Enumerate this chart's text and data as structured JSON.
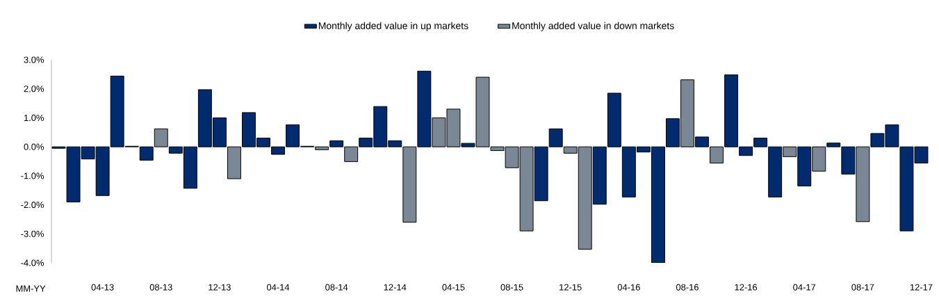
{
  "chart_data": {
    "type": "bar",
    "xlabel": "MM-YY",
    "categories": [
      null,
      null,
      null,
      "04-13",
      null,
      null,
      null,
      "08-13",
      null,
      null,
      null,
      "12-13",
      null,
      null,
      null,
      "04-14",
      null,
      null,
      null,
      "08-14",
      null,
      null,
      null,
      "12-14",
      null,
      null,
      null,
      "04-15",
      null,
      null,
      null,
      "08-15",
      null,
      null,
      null,
      "12-15",
      null,
      null,
      null,
      "04-16",
      null,
      null,
      null,
      "08-16",
      null,
      null,
      null,
      "12-16",
      null,
      null,
      null,
      "04-17",
      null,
      null,
      null,
      "08-17",
      null,
      null,
      null,
      "12-17"
    ],
    "series": [
      {
        "name": "Monthly added value in up markets",
        "color": "#002b6f",
        "values": [
          -0.05,
          -1.9,
          -0.42,
          -1.68,
          2.44,
          0.02,
          -0.46,
          null,
          -0.22,
          -1.43,
          1.97,
          1.0,
          null,
          1.18,
          0.3,
          -0.26,
          0.76,
          0.02,
          null,
          0.21,
          null,
          0.3,
          1.39,
          0.21,
          null,
          2.61,
          null,
          null,
          0.12,
          null,
          null,
          null,
          null,
          -1.86,
          0.62,
          null,
          null,
          -1.98,
          1.85,
          -1.73,
          -0.18,
          -4.0,
          0.97,
          null,
          0.34,
          null,
          2.48,
          -0.3,
          0.3,
          -1.73,
          null,
          -1.35,
          null,
          0.13,
          -0.94,
          null,
          0.46,
          0.76,
          -2.9,
          -0.56
        ]
      },
      {
        "name": "Monthly added value in down markets",
        "color": "#7a8794",
        "values": [
          null,
          null,
          null,
          null,
          null,
          null,
          null,
          0.62,
          null,
          null,
          null,
          null,
          -1.1,
          null,
          null,
          null,
          null,
          null,
          -0.1,
          null,
          -0.51,
          null,
          null,
          null,
          -2.6,
          null,
          1.0,
          1.3,
          null,
          2.4,
          -0.13,
          -0.72,
          -2.9,
          null,
          null,
          -0.22,
          -3.53,
          null,
          null,
          null,
          null,
          null,
          null,
          2.31,
          null,
          -0.56,
          null,
          null,
          null,
          null,
          -0.34,
          null,
          -0.84,
          null,
          null,
          -2.58,
          null,
          null,
          null,
          null
        ]
      }
    ],
    "ylim": [
      -4,
      3
    ],
    "yticks": [
      {
        "value": 3,
        "label": "3.0%"
      },
      {
        "value": 2,
        "label": "2.0%"
      },
      {
        "value": 1,
        "label": "1.0%"
      },
      {
        "value": 0,
        "label": "0.0%"
      },
      {
        "value": -1,
        "label": "-1.0%"
      },
      {
        "value": -2,
        "label": "-2.0%"
      },
      {
        "value": -3,
        "label": "-3.0%"
      },
      {
        "value": -4,
        "label": "-4.0%"
      }
    ],
    "grid": false,
    "legend": "top"
  }
}
